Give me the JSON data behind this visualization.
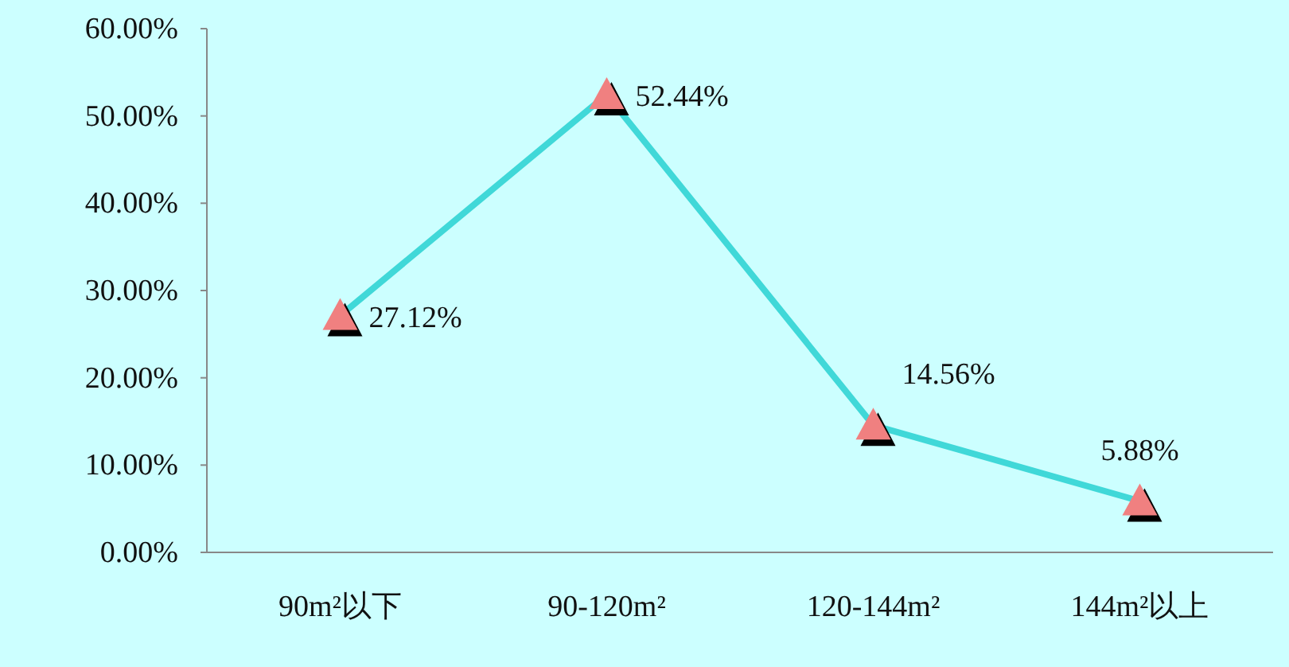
{
  "chart_data": {
    "type": "line",
    "categories": [
      "90m²以下",
      "90-120m²",
      "120-144m²",
      "144m²以上"
    ],
    "series": [
      {
        "color": "#40d8d8",
        "values": [
          27.12,
          52.44,
          14.56,
          5.88
        ],
        "value_labels": [
          "27.12%",
          "52.44%",
          "14.56%",
          "5.88%"
        ]
      }
    ],
    "ylim": [
      0,
      60
    ],
    "yticks": [
      {
        "value": 0,
        "label": "0.00%"
      },
      {
        "value": 10,
        "label": "10.00%"
      },
      {
        "value": 20,
        "label": "20.00%"
      },
      {
        "value": 30,
        "label": "30.00%"
      },
      {
        "value": 40,
        "label": "40.00%"
      },
      {
        "value": 50,
        "label": "50.00%"
      },
      {
        "value": 60,
        "label": "60.00%"
      }
    ],
    "marker": "triangle",
    "grid": false
  }
}
